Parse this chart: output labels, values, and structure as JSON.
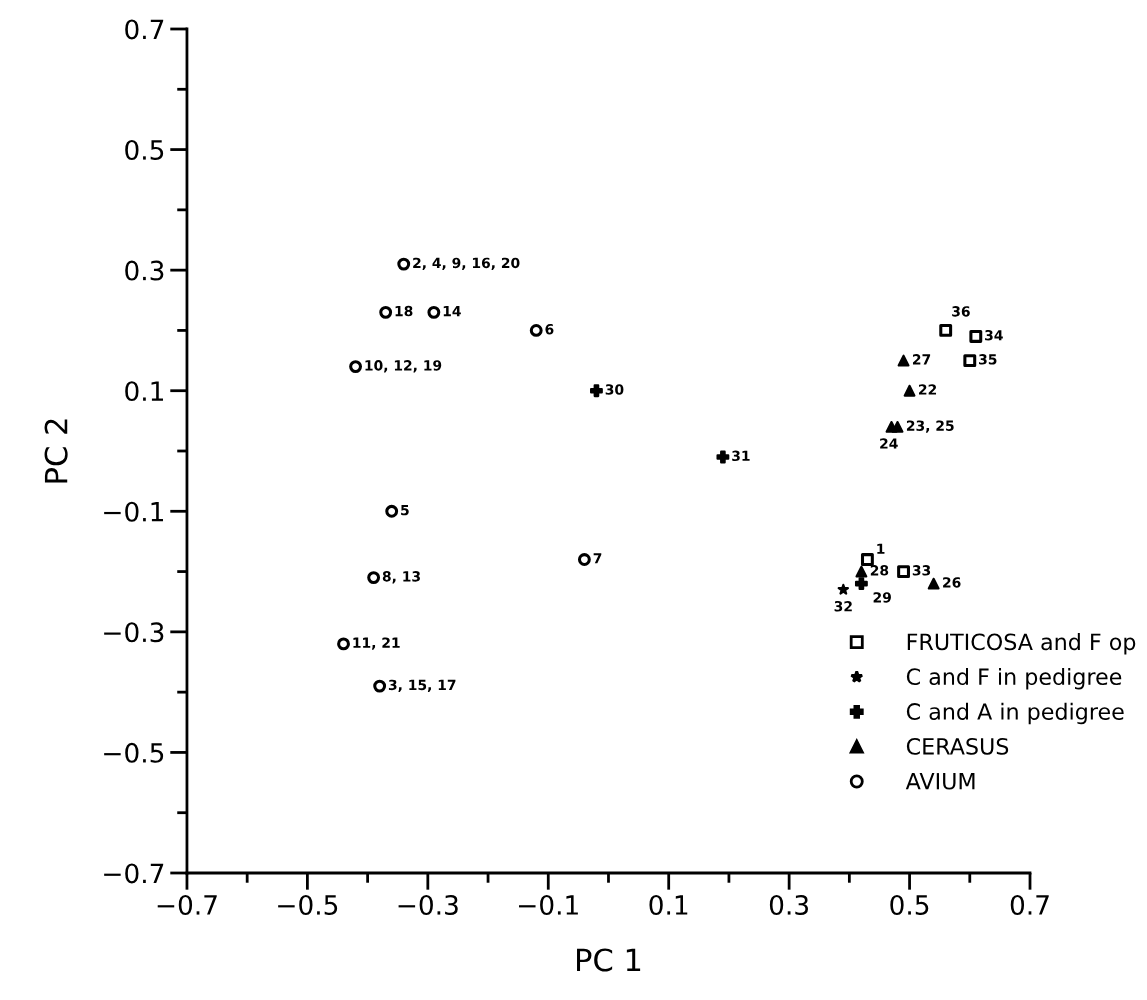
{
  "chart_data": {
    "type": "scatter",
    "xlabel": "PC 1",
    "ylabel": "PC 2",
    "xlim": [
      -0.7,
      0.7
    ],
    "ylim": [
      -0.7,
      0.7
    ],
    "xticks": [
      -0.7,
      {
        "value": -0.6,
        "label": null
      },
      -0.5,
      {
        "value": -0.4,
        "label": null
      },
      -0.3,
      {
        "value": -0.2,
        "label": null
      },
      -0.1,
      {
        "value": 0.0,
        "label": null
      },
      0.1,
      {
        "value": 0.2,
        "label": null
      },
      0.3,
      {
        "value": 0.4,
        "label": null
      },
      0.5,
      {
        "value": 0.6,
        "label": null
      },
      0.7
    ],
    "yticks": [
      -0.7,
      {
        "value": -0.6,
        "label": null
      },
      -0.5,
      {
        "value": -0.4,
        "label": null
      },
      -0.3,
      {
        "value": -0.2,
        "label": null
      },
      -0.1,
      {
        "value": 0.0,
        "label": null
      },
      0.1,
      {
        "value": 0.2,
        "label": null
      },
      0.3,
      {
        "value": 0.4,
        "label": null
      },
      0.5,
      {
        "value": 0.6,
        "label": null
      },
      0.7
    ],
    "grid": false,
    "legend": "bottom right",
    "series": [
      {
        "name": "FRUTICOSA and F op",
        "color": "#000000",
        "marker": "square",
        "x": [
          0.56,
          0.61,
          0.6,
          0.43,
          0.49
        ],
        "values": [
          0.2,
          0.19,
          0.15,
          -0.18,
          -0.2
        ]
      },
      {
        "name": "C and F in pedigree",
        "color": "#000000",
        "marker": "star",
        "x": [
          0.39
        ],
        "values": [
          -0.23
        ]
      },
      {
        "name": "C and A in pedigree",
        "color": "#000000",
        "marker": "cross",
        "x": [
          -0.02,
          0.19,
          0.42
        ],
        "values": [
          0.1,
          -0.01,
          -0.22
        ]
      },
      {
        "name": "CERASUS",
        "color": "#000000",
        "marker": "triangle",
        "x": [
          0.49,
          0.5,
          0.48,
          0.47,
          0.42,
          0.54
        ],
        "values": [
          0.15,
          0.1,
          0.04,
          0.04,
          -0.2,
          -0.22
        ]
      },
      {
        "name": "AVIUM",
        "color": "#000000",
        "marker": "circle",
        "x": [
          -0.34,
          -0.37,
          -0.29,
          -0.12,
          -0.42,
          -0.36,
          -0.04,
          -0.39,
          -0.44,
          -0.38
        ],
        "values": [
          0.31,
          0.23,
          0.23,
          0.2,
          0.14,
          -0.1,
          -0.18,
          -0.21,
          -0.32,
          -0.39
        ]
      }
    ],
    "annotations": [
      {
        "text": "36",
        "x": 0.56,
        "y": 0.2
      },
      {
        "text": "34",
        "x": 0.61,
        "y": 0.19
      },
      {
        "text": "35",
        "x": 0.6,
        "y": 0.15
      },
      {
        "text": "1",
        "x": 0.43,
        "y": -0.18
      },
      {
        "text": "33",
        "x": 0.49,
        "y": -0.2
      },
      {
        "text": "32",
        "x": 0.39,
        "y": -0.23
      },
      {
        "text": "30",
        "x": -0.02,
        "y": 0.1
      },
      {
        "text": "31",
        "x": 0.19,
        "y": -0.01
      },
      {
        "text": "29",
        "x": 0.42,
        "y": -0.22
      },
      {
        "text": "27",
        "x": 0.49,
        "y": 0.15
      },
      {
        "text": "22",
        "x": 0.5,
        "y": 0.1
      },
      {
        "text": "23, 25",
        "x": 0.48,
        "y": 0.04
      },
      {
        "text": "24",
        "x": 0.47,
        "y": 0.04
      },
      {
        "text": "28",
        "x": 0.42,
        "y": -0.2
      },
      {
        "text": "26",
        "x": 0.54,
        "y": -0.22
      },
      {
        "text": "2, 4, 9, 16, 20",
        "x": -0.34,
        "y": 0.31
      },
      {
        "text": "18",
        "x": -0.37,
        "y": 0.23
      },
      {
        "text": "14",
        "x": -0.29,
        "y": 0.23
      },
      {
        "text": "6",
        "x": -0.12,
        "y": 0.2
      },
      {
        "text": "10, 12, 19",
        "x": -0.42,
        "y": 0.14
      },
      {
        "text": "5",
        "x": -0.36,
        "y": -0.1
      },
      {
        "text": "7",
        "x": -0.04,
        "y": -0.18
      },
      {
        "text": "8, 13",
        "x": -0.39,
        "y": -0.21
      },
      {
        "text": "11, 21",
        "x": -0.44,
        "y": -0.32
      },
      {
        "text": "3, 15, 17",
        "x": -0.38,
        "y": -0.39
      }
    ]
  }
}
